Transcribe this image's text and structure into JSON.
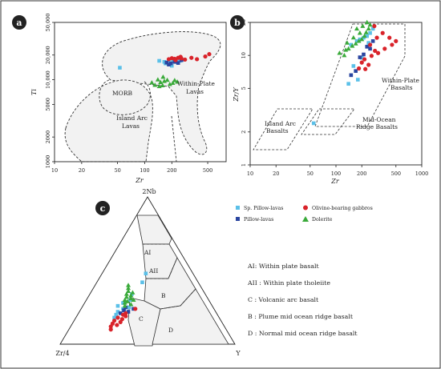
{
  "panels": {
    "a": "a",
    "b": "b",
    "c": "c"
  },
  "legend": {
    "sp_pillow": "Sp. Pillow-lavas",
    "pillow": "Pillow-lavas",
    "olivine_gabbros": "Olivine-bearing gabbros",
    "dolerite": "Dolerite"
  },
  "field_labels_a": {
    "morb": "MORB",
    "island_arc_1": "Island Arc",
    "island_arc_2": "Lavas",
    "wpl_1": "Within-Plate",
    "wpl_2": "Lavas"
  },
  "field_labels_b": {
    "wpb_1": "Within-Plate",
    "wpb_2": "Basalts",
    "iab_1": "Island Arc",
    "iab_2": "Basalts",
    "morb_1": "Mid-Ocean",
    "morb_2": "Ridge Basalts"
  },
  "field_labels_c": {
    "ai": "AI",
    "aii": "AII",
    "b": "B",
    "c": "C",
    "d": "D"
  },
  "ternary_labels": {
    "top": "2Nb",
    "left": "Zr/4",
    "right": "Y"
  },
  "key_c": [
    "AI: Within plate basalt",
    "AII : Within plate tholeiite",
    "C : Volcanic arc basalt",
    "B : Plume mid ocean ridge basalt",
    "D : Normal mid ocean ridge basalt"
  ],
  "colors": {
    "sp_pillow": "#5bc0e8",
    "pillow": "#2a45a0",
    "gabbro": "#d9232a",
    "dolerite": "#3aaa3a"
  },
  "chart_data": [
    {
      "type": "scatter",
      "panel": "a",
      "xlabel": "Zr",
      "ylabel": "Ti",
      "x_scale": "log",
      "y_scale": "log",
      "xlim": [
        10,
        800
      ],
      "ylim": [
        1000,
        50000
      ],
      "x_ticks": [
        "10",
        "20",
        "50",
        "100",
        "200",
        "500"
      ],
      "y_ticks": [
        "1000",
        "2000",
        "5000",
        "10,000",
        "20,000",
        "50,000"
      ],
      "series": [
        {
          "name": "Sp. Pillow-lavas",
          "points": [
            [
              53,
              14000
            ],
            [
              145,
              17000
            ],
            [
              165,
              16500
            ],
            [
              185,
              17200
            ],
            [
              205,
              16800
            ],
            [
              230,
              16500
            ],
            [
              245,
              17000
            ],
            [
              170,
              15800
            ],
            [
              200,
              14800
            ],
            [
              260,
              17500
            ]
          ]
        },
        {
          "name": "Pillow-lavas",
          "points": [
            [
              175,
              16200
            ],
            [
              195,
              15800
            ],
            [
              215,
              16500
            ],
            [
              235,
              16000
            ],
            [
              255,
              17300
            ],
            [
              185,
              15300
            ]
          ]
        },
        {
          "name": "Olivine-bearing gabbros",
          "points": [
            [
              185,
              17800
            ],
            [
              200,
              18300
            ],
            [
              215,
              18000
            ],
            [
              235,
              18500
            ],
            [
              255,
              18200
            ],
            [
              280,
              17600
            ],
            [
              330,
              18500
            ],
            [
              380,
              17800
            ],
            [
              470,
              19200
            ],
            [
              520,
              20500
            ],
            [
              220,
              17300
            ],
            [
              250,
              19000
            ]
          ]
        },
        {
          "name": "Dolerite",
          "points": [
            [
              120,
              9200
            ],
            [
              130,
              8600
            ],
            [
              140,
              10000
            ],
            [
              150,
              9300
            ],
            [
              158,
              8500
            ],
            [
              165,
              9600
            ],
            [
              178,
              9900
            ],
            [
              190,
              8800
            ],
            [
              205,
              9100
            ],
            [
              215,
              9800
            ],
            [
              230,
              9400
            ],
            [
              160,
              10800
            ],
            [
              145,
              8300
            ]
          ]
        }
      ]
    },
    {
      "type": "scatter",
      "panel": "b",
      "xlabel": "Zr",
      "ylabel": "Zr/Y",
      "x_scale": "log",
      "y_scale": "log",
      "xlim": [
        10,
        1000
      ],
      "ylim": [
        1,
        20
      ],
      "x_ticks": [
        "10",
        "20",
        "50",
        "100",
        "200",
        "500",
        "1000"
      ],
      "y_ticks": [
        "1",
        "2",
        "5",
        "10",
        "20"
      ],
      "series": [
        {
          "name": "Sp. Pillow-lavas",
          "points": [
            [
              55,
              2.4
            ],
            [
              150,
              12.5
            ],
            [
              175,
              13.5
            ],
            [
              190,
              14
            ],
            [
              210,
              14.5
            ],
            [
              230,
              15
            ],
            [
              250,
              16
            ],
            [
              270,
              17.5
            ],
            [
              160,
              8
            ],
            [
              180,
              6
            ],
            [
              140,
              5.5
            ],
            [
              200,
              9.5
            ],
            [
              240,
              13
            ]
          ]
        },
        {
          "name": "Pillow-lavas",
          "points": [
            [
              150,
              6.6
            ],
            [
              170,
              7.2
            ],
            [
              190,
              9.6
            ],
            [
              210,
              10.2
            ],
            [
              230,
              12
            ],
            [
              250,
              11.5
            ],
            [
              270,
              13.5
            ]
          ]
        },
        {
          "name": "Olivine-bearing gabbros",
          "points": [
            [
              185,
              7.6
            ],
            [
              200,
              8.6
            ],
            [
              215,
              9.2
            ],
            [
              240,
              8.2
            ],
            [
              260,
              9.9
            ],
            [
              285,
              11
            ],
            [
              310,
              10.5
            ],
            [
              370,
              11.5
            ],
            [
              450,
              12.5
            ],
            [
              500,
              13.5
            ],
            [
              250,
              12.5
            ],
            [
              300,
              14.5
            ],
            [
              350,
              16
            ],
            [
              280,
              18.5
            ],
            [
              420,
              14.5
            ],
            [
              220,
              7.5
            ]
          ]
        },
        {
          "name": "Dolerite",
          "points": [
            [
              110,
              10.5
            ],
            [
              125,
              10
            ],
            [
              130,
              11.2
            ],
            [
              140,
              11.5
            ],
            [
              155,
              12.2
            ],
            [
              170,
              12.8
            ],
            [
              185,
              13.5
            ],
            [
              200,
              14
            ],
            [
              215,
              15
            ],
            [
              225,
              16.2
            ],
            [
              240,
              17.5
            ],
            [
              250,
              19
            ],
            [
              160,
              14.5
            ],
            [
              190,
              16
            ],
            [
              175,
              17.5
            ],
            [
              205,
              18.5
            ],
            [
              135,
              13
            ],
            [
              230,
              20
            ]
          ]
        }
      ]
    },
    {
      "type": "ternary",
      "panel": "c",
      "axes": [
        "2Nb",
        "Zr/4",
        "Y"
      ],
      "series": [
        {
          "name": "Sp. Pillow-lavas",
          "points": [
            [
              0.3,
              0.45,
              0.25
            ],
            [
              0.28,
              0.5,
              0.22
            ],
            [
              0.26,
              0.54,
              0.2
            ],
            [
              0.24,
              0.52,
              0.24
            ],
            [
              0.22,
              0.56,
              0.22
            ],
            [
              0.2,
              0.58,
              0.22
            ],
            [
              0.34,
              0.42,
              0.24
            ],
            [
              0.42,
              0.32,
              0.26
            ],
            [
              0.48,
              0.27,
              0.25
            ],
            [
              0.18,
              0.6,
              0.22
            ],
            [
              0.25,
              0.48,
              0.27
            ]
          ]
        },
        {
          "name": "Pillow-lavas",
          "points": [
            [
              0.25,
              0.5,
              0.25
            ],
            [
              0.23,
              0.52,
              0.25
            ],
            [
              0.21,
              0.55,
              0.24
            ],
            [
              0.22,
              0.5,
              0.28
            ],
            [
              0.24,
              0.46,
              0.3
            ]
          ]
        },
        {
          "name": "Olivine-bearing gabbros",
          "points": [
            [
              0.12,
              0.65,
              0.23
            ],
            [
              0.14,
              0.63,
              0.23
            ],
            [
              0.16,
              0.61,
              0.23
            ],
            [
              0.13,
              0.61,
              0.26
            ],
            [
              0.15,
              0.58,
              0.27
            ],
            [
              0.17,
              0.56,
              0.27
            ],
            [
              0.19,
              0.53,
              0.28
            ],
            [
              0.2,
              0.54,
              0.26
            ],
            [
              0.18,
              0.58,
              0.24
            ],
            [
              0.21,
              0.52,
              0.27
            ],
            [
              0.24,
              0.45,
              0.31
            ],
            [
              0.1,
              0.66,
              0.24
            ]
          ]
        },
        {
          "name": "Dolerite",
          "points": [
            [
              0.3,
              0.48,
              0.22
            ],
            [
              0.32,
              0.46,
              0.22
            ],
            [
              0.34,
              0.45,
              0.21
            ],
            [
              0.36,
              0.43,
              0.21
            ],
            [
              0.38,
              0.42,
              0.2
            ],
            [
              0.4,
              0.41,
              0.19
            ],
            [
              0.33,
              0.43,
              0.24
            ],
            [
              0.29,
              0.47,
              0.24
            ],
            [
              0.27,
              0.46,
              0.27
            ],
            [
              0.31,
              0.44,
              0.25
            ],
            [
              0.35,
              0.41,
              0.24
            ],
            [
              0.28,
              0.49,
              0.23
            ],
            [
              0.26,
              0.5,
              0.24
            ],
            [
              0.3,
              0.43,
              0.27
            ]
          ]
        }
      ]
    }
  ]
}
